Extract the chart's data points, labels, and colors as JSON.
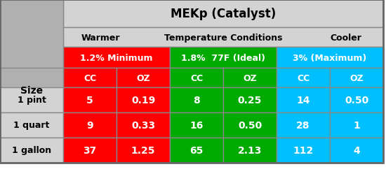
{
  "title_row": "MEKp (Catalyst)",
  "subtitle_left": "Warmer",
  "subtitle_center": "Temperature Conditions",
  "subtitle_right": "Cooler",
  "col_headers": [
    "1.2% Minimum",
    "1.8%  77F (Ideal)",
    "3% (Maximum)"
  ],
  "col_subheaders": [
    "CC",
    "OZ",
    "CC",
    "OZ",
    "CC",
    "OZ"
  ],
  "row_labels": [
    "Size",
    "1 pint",
    "1 quart",
    "1 gallon"
  ],
  "data": [
    [
      "5",
      "0.19",
      "8",
      "0.25",
      "14",
      "0.50"
    ],
    [
      "9",
      "0.33",
      "16",
      "0.50",
      "28",
      "1"
    ],
    [
      "37",
      "1.25",
      "65",
      "2.13",
      "112",
      "4"
    ]
  ],
  "color_red": "#FF0000",
  "color_green": "#00AA00",
  "color_cyan": "#00BFFF",
  "color_light_gray": "#D3D3D3",
  "color_gray": "#B0B0B0",
  "color_white": "#FFFFFF",
  "color_dark_text": "#222222",
  "figsize": [
    5.5,
    2.53
  ],
  "dpi": 100
}
